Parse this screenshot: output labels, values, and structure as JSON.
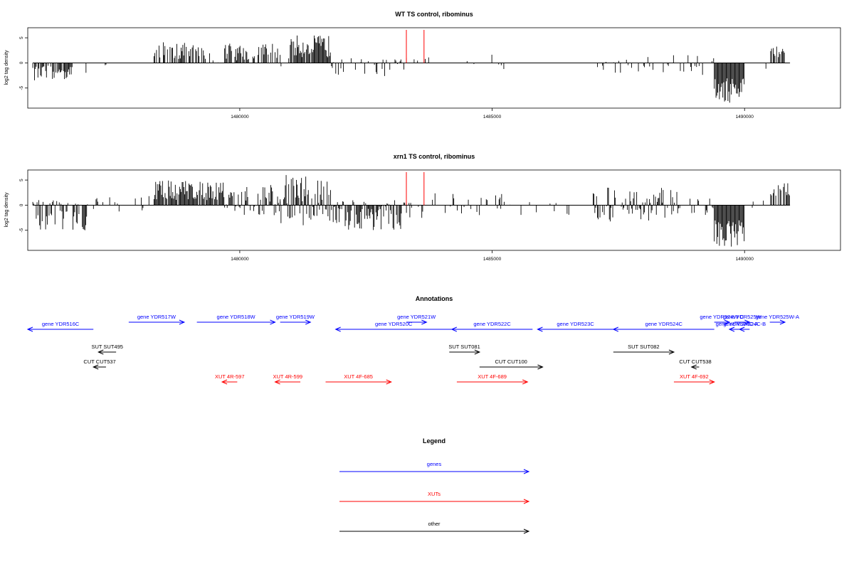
{
  "colors": {
    "gene": "#0000ff",
    "xut": "#ff0000",
    "other": "#000000",
    "marker": "#ff0000"
  },
  "chart_data": [
    {
      "type": "bar",
      "title": "WT TS control, ribominus",
      "ylabel": "log2 tag density",
      "xlim": [
        1475800,
        1491900
      ],
      "ylim": [
        -9,
        7
      ],
      "y_ticks": [
        -5,
        0,
        5
      ],
      "x_ticks": [
        1480000,
        1485000,
        1490000
      ],
      "x_tick_labels": [
        "1480000",
        "1485000",
        "1490000"
      ],
      "marker_lines_x": [
        1483300,
        1483650
      ],
      "approx_signal_regions": [
        {
          "x": [
            1475900,
            1476700
          ],
          "y": [
            -3.5,
            -0.5
          ],
          "density": 0.7
        },
        {
          "x": [
            1476700,
            1477000
          ],
          "y": [
            -2,
            0
          ],
          "density": 0.12
        },
        {
          "x": [
            1477300,
            1477500
          ],
          "y": [
            -1.5,
            0
          ],
          "density": 0.08
        },
        {
          "x": [
            1478300,
            1478500
          ],
          "y": [
            1,
            4.5
          ],
          "density": 0.5
        },
        {
          "x": [
            1478500,
            1479300
          ],
          "y": [
            0.5,
            4
          ],
          "density": 0.6
        },
        {
          "x": [
            1479300,
            1479700
          ],
          "y": [
            -1,
            2
          ],
          "density": 0.15
        },
        {
          "x": [
            1479700,
            1480800
          ],
          "y": [
            0.5,
            4
          ],
          "density": 0.6
        },
        {
          "x": [
            1480800,
            1481000
          ],
          "y": [
            -1,
            1
          ],
          "density": 0.1
        },
        {
          "x": [
            1481000,
            1481800
          ],
          "y": [
            1,
            5.5
          ],
          "density": 0.9
        },
        {
          "x": [
            1481800,
            1482600
          ],
          "y": [
            -2.5,
            1
          ],
          "density": 0.3
        },
        {
          "x": [
            1482600,
            1483200
          ],
          "y": [
            -3,
            1
          ],
          "density": 0.3
        },
        {
          "x": [
            1483200,
            1483800
          ],
          "y": [
            -2.5,
            2
          ],
          "density": 0.2
        },
        {
          "x": [
            1484300,
            1485500
          ],
          "y": [
            -2,
            2
          ],
          "density": 0.08
        },
        {
          "x": [
            1487000,
            1488000
          ],
          "y": [
            -2.5,
            1
          ],
          "density": 0.15
        },
        {
          "x": [
            1488000,
            1489400
          ],
          "y": [
            -3,
            2
          ],
          "density": 0.3
        },
        {
          "x": [
            1489400,
            1490000
          ],
          "y": [
            -8,
            -3
          ],
          "density": 1.0
        },
        {
          "x": [
            1490000,
            1490500
          ],
          "y": [
            -1.5,
            0
          ],
          "density": 0.05
        },
        {
          "x": [
            1490500,
            1490800
          ],
          "y": [
            1,
            3.5
          ],
          "density": 0.5
        }
      ]
    },
    {
      "type": "bar",
      "title": "xrn1 TS control, ribominus",
      "ylabel": "log2 tag density",
      "xlim": [
        1475800,
        1491900
      ],
      "ylim": [
        -9,
        7
      ],
      "y_ticks": [
        -5,
        0,
        5
      ],
      "x_ticks": [
        1480000,
        1485000,
        1490000
      ],
      "x_tick_labels": [
        "1480000",
        "1485000",
        "1490000"
      ],
      "marker_lines_x": [
        1483300,
        1483650
      ],
      "approx_signal_regions": [
        {
          "x": [
            1475900,
            1477000
          ],
          "y": [
            -5,
            1
          ],
          "density": 0.8
        },
        {
          "x": [
            1477000,
            1478300
          ],
          "y": [
            -2,
            2
          ],
          "density": 0.3
        },
        {
          "x": [
            1478300,
            1479700
          ],
          "y": [
            1,
            5
          ],
          "density": 0.9
        },
        {
          "x": [
            1479700,
            1480800
          ],
          "y": [
            -2,
            4
          ],
          "density": 0.7
        },
        {
          "x": [
            1480800,
            1481800
          ],
          "y": [
            -4,
            6
          ],
          "density": 0.95
        },
        {
          "x": [
            1481800,
            1483200
          ],
          "y": [
            -5,
            1
          ],
          "density": 0.85
        },
        {
          "x": [
            1483200,
            1483800
          ],
          "y": [
            -3,
            2
          ],
          "density": 0.4
        },
        {
          "x": [
            1483800,
            1485300
          ],
          "y": [
            -2,
            2.5
          ],
          "density": 0.3
        },
        {
          "x": [
            1485300,
            1487000
          ],
          "y": [
            -2,
            1
          ],
          "density": 0.12
        },
        {
          "x": [
            1487000,
            1488700
          ],
          "y": [
            -3.5,
            3.5
          ],
          "density": 0.7
        },
        {
          "x": [
            1488700,
            1489400
          ],
          "y": [
            -2,
            1.5
          ],
          "density": 0.3
        },
        {
          "x": [
            1489400,
            1490000
          ],
          "y": [
            -8.5,
            -3
          ],
          "density": 1.0
        },
        {
          "x": [
            1490000,
            1490500
          ],
          "y": [
            -1.5,
            1
          ],
          "density": 0.1
        },
        {
          "x": [
            1490500,
            1490900
          ],
          "y": [
            1,
            5
          ],
          "density": 0.6
        }
      ]
    }
  ],
  "annotations": {
    "title": "Annotations",
    "genome_range": [
      1475800,
      1491900
    ],
    "features": [
      {
        "label": "gene YDR516C",
        "kind": "gene",
        "start": 1475800,
        "end": 1477100,
        "strand": "-",
        "row": 2
      },
      {
        "label": "gene YDR517W",
        "kind": "gene",
        "start": 1477800,
        "end": 1478900,
        "strand": "+",
        "row": 1
      },
      {
        "label": "gene YDR518W",
        "kind": "gene",
        "start": 1479150,
        "end": 1480700,
        "strand": "+",
        "row": 1
      },
      {
        "label": "gene YDR519W",
        "kind": "gene",
        "start": 1480800,
        "end": 1481400,
        "strand": "+",
        "row": 1
      },
      {
        "label": "gene YDR520C",
        "kind": "gene",
        "start": 1481900,
        "end": 1484200,
        "strand": "-",
        "row": 2
      },
      {
        "label": "gene YDR521W",
        "kind": "gene",
        "start": 1483300,
        "end": 1483700,
        "strand": "+",
        "row": 1
      },
      {
        "label": "gene YDR522C",
        "kind": "gene",
        "start": 1484200,
        "end": 1485800,
        "strand": "-",
        "row": 2
      },
      {
        "label": "gene YDR523C",
        "kind": "gene",
        "start": 1485900,
        "end": 1487400,
        "strand": "-",
        "row": 2
      },
      {
        "label": "gene YDR524C",
        "kind": "gene",
        "start": 1487400,
        "end": 1489400,
        "strand": "-",
        "row": 2
      },
      {
        "label": "gene YDR524W-C",
        "kind": "gene",
        "start": 1489400,
        "end": 1489700,
        "strand": "+",
        "row": 1
      },
      {
        "label": "gene YDR525W",
        "kind": "gene",
        "start": 1489800,
        "end": 1490100,
        "strand": "+",
        "row": 1
      },
      {
        "label": "gene YDR525W-A",
        "kind": "gene",
        "start": 1490500,
        "end": 1490800,
        "strand": "+",
        "row": 1
      },
      {
        "label": "gene YDR524C-A",
        "kind": "gene",
        "start": 1489700,
        "end": 1490000,
        "strand": "-",
        "row": 2
      },
      {
        "label": "gene YDR524C-B",
        "kind": "gene",
        "start": 1489900,
        "end": 1490100,
        "strand": "-",
        "row": 2
      },
      {
        "label": "SUT SUT495",
        "kind": "other",
        "start": 1477200,
        "end": 1477550,
        "strand": "-",
        "row": 4
      },
      {
        "label": "SUT SUT081",
        "kind": "other",
        "start": 1484150,
        "end": 1484750,
        "strand": "+",
        "row": 4
      },
      {
        "label": "SUT SUT082",
        "kind": "other",
        "start": 1487400,
        "end": 1488600,
        "strand": "+",
        "row": 4
      },
      {
        "label": "CUT CUT537",
        "kind": "other",
        "start": 1477100,
        "end": 1477350,
        "strand": "-",
        "row": 5
      },
      {
        "label": "CUT CUT100",
        "kind": "other",
        "start": 1484750,
        "end": 1486000,
        "strand": "+",
        "row": 5
      },
      {
        "label": "CUT CUT538",
        "kind": "other",
        "start": 1488950,
        "end": 1489100,
        "strand": "-",
        "row": 5
      },
      {
        "label": "XUT 4R-597",
        "kind": "xut",
        "start": 1479650,
        "end": 1479950,
        "strand": "-",
        "row": 6
      },
      {
        "label": "XUT 4R-599",
        "kind": "xut",
        "start": 1480700,
        "end": 1481200,
        "strand": "-",
        "row": 6
      },
      {
        "label": "XUT 4F-685",
        "kind": "xut",
        "start": 1481700,
        "end": 1483000,
        "strand": "+",
        "row": 6
      },
      {
        "label": "XUT 4F-689",
        "kind": "xut",
        "start": 1484300,
        "end": 1485700,
        "strand": "+",
        "row": 6
      },
      {
        "label": "XUT 4F-692",
        "kind": "xut",
        "start": 1488600,
        "end": 1489400,
        "strand": "+",
        "row": 6
      }
    ]
  },
  "legend": {
    "title": "Legend",
    "items": [
      {
        "label": "genes",
        "kind": "gene"
      },
      {
        "label": "XUTs",
        "kind": "xut"
      },
      {
        "label": "other",
        "kind": "other"
      }
    ]
  }
}
